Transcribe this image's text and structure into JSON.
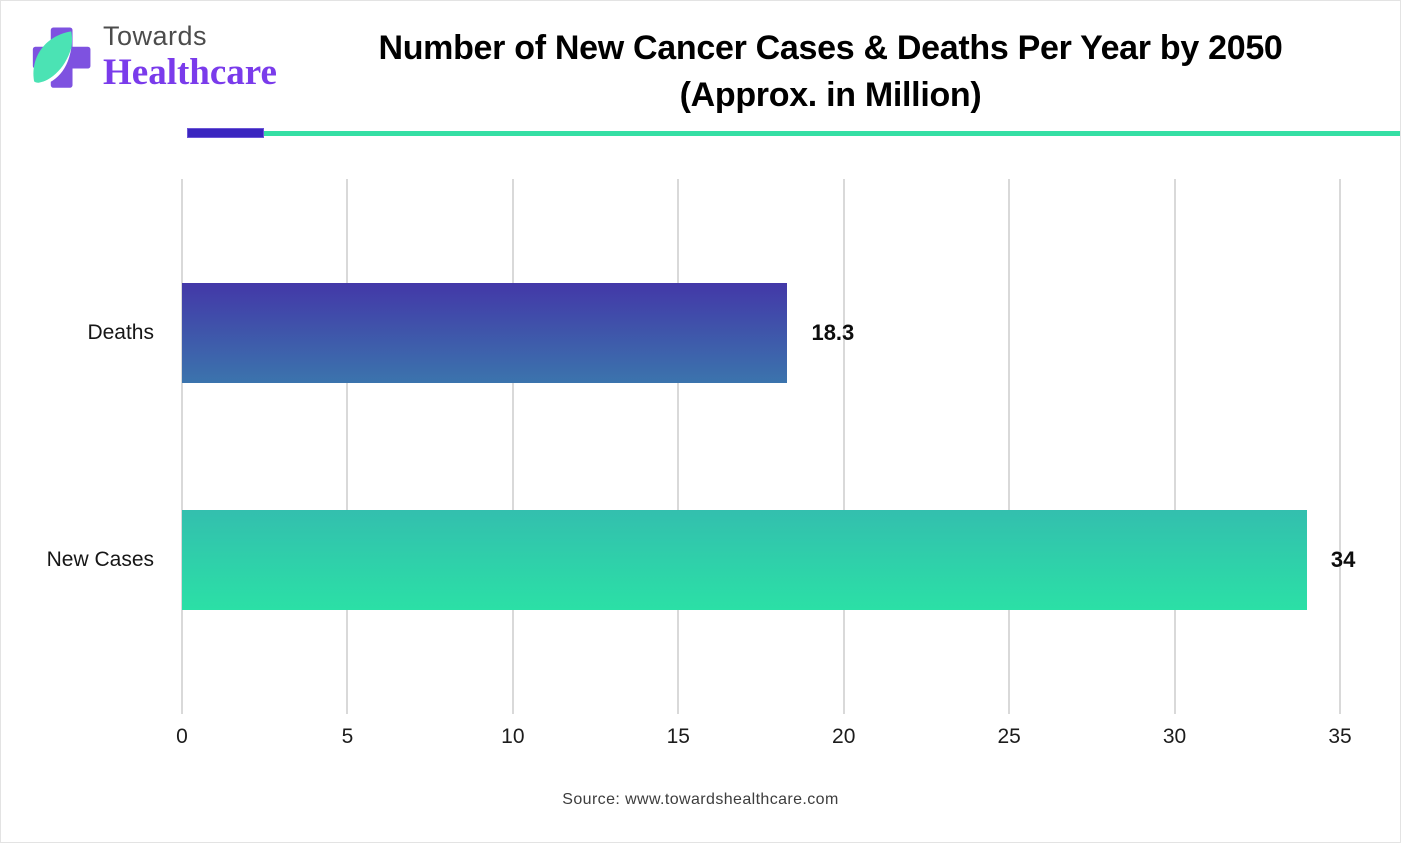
{
  "logo": {
    "towards": "Towards",
    "healthcare": "Healthcare",
    "cross_color": "#7e52e0",
    "leaf_color": "#4be3b4"
  },
  "header": {
    "title_line1": "Number of New Cancer Cases & Deaths Per Year by 2050",
    "title_line2": "(Approx. in Million)",
    "divider_purple_color": "#3a25c0",
    "divider_teal_color": "#35dfa4"
  },
  "chart_data": {
    "type": "bar",
    "orientation": "horizontal",
    "title": "Number of New Cancer Cases & Deaths Per Year by 2050 (Approx. in Million)",
    "categories": [
      "Deaths",
      "New Cases"
    ],
    "values": [
      18.3,
      34
    ],
    "value_labels": [
      "18.3",
      "34"
    ],
    "xlim": [
      0,
      35
    ],
    "x_ticks": [
      0,
      5,
      10,
      15,
      20,
      25,
      30,
      35
    ],
    "grid": true,
    "gridline_color": "#d9d9d9",
    "bar_gradients": [
      {
        "top": "#4338a8",
        "bottom": "#3b74ad"
      },
      {
        "top": "#33bfae",
        "bottom": "#2be0a6"
      }
    ],
    "legend": "none"
  },
  "footer": {
    "source": "Source: www.towardshealthcare.com"
  }
}
